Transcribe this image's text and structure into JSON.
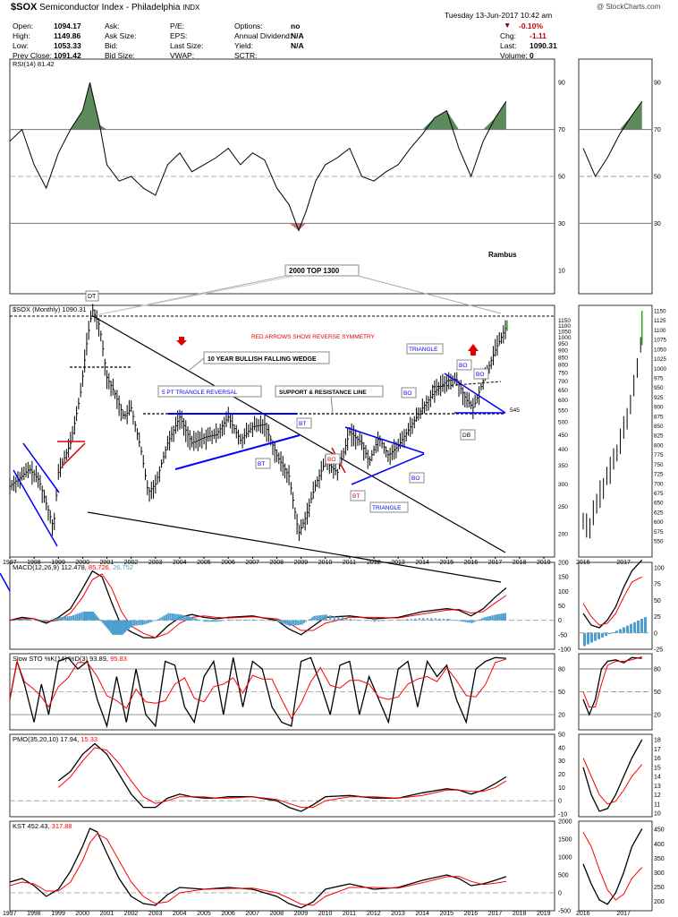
{
  "header": {
    "symbol": "$SOX",
    "name": "Semiconductor Index - Philadelphia",
    "exchange": "INDX",
    "date": "Tuesday  13-Jun-2017  10:42 am",
    "copyright": "@ StockCharts.com",
    "col1": [
      [
        "Open:",
        "1094.17"
      ],
      [
        "High:",
        "1149.86"
      ],
      [
        "Low:",
        "1053.33"
      ],
      [
        "Prev Close:",
        "1091.42"
      ]
    ],
    "col2": [
      "Ask:",
      "Ask Size:",
      "Bid:",
      "Bid Size:"
    ],
    "col3": [
      "P/E:",
      "EPS:",
      "Last Size:",
      "VWAP:"
    ],
    "col4": [
      [
        "Options:",
        "no"
      ],
      [
        "Annual Dividend:",
        "N/A"
      ],
      [
        "Yield:",
        "N/A"
      ],
      [
        "SCTR:",
        ""
      ]
    ],
    "col5": [
      [
        "",
        "-0.10%"
      ],
      [
        "Chg:",
        "-1.11"
      ],
      [
        "Last:",
        "1090.31"
      ],
      [
        "Volume:",
        "0"
      ]
    ]
  },
  "colors": {
    "price": "#000000",
    "signal": "#ff0000",
    "annot_blue": "#0000ff",
    "rsi_fill": "#5c8a5c",
    "macd_hist": "#4a9fd0",
    "grid": "#888888",
    "up_bar": "#22aa22"
  },
  "chart_data": [
    {
      "type": "line",
      "panel": "RSI",
      "legend": "RSI(14) 81.42",
      "ylim": [
        0,
        100
      ],
      "yticks": [
        10,
        30,
        50,
        70,
        90
      ],
      "x": [
        1997.0,
        1997.5,
        1998.0,
        1998.5,
        1999.0,
        1999.5,
        2000.0,
        2000.3,
        2000.7,
        2001.0,
        2001.5,
        2002.0,
        2002.5,
        2003.0,
        2003.5,
        2004.0,
        2004.5,
        2005.0,
        2005.5,
        2006.0,
        2006.5,
        2007.0,
        2007.5,
        2008.0,
        2008.5,
        2008.9,
        2009.2,
        2009.6,
        2010.0,
        2010.5,
        2011.0,
        2011.5,
        2012.0,
        2012.5,
        2013.0,
        2013.5,
        2014.0,
        2014.5,
        2015.0,
        2015.5,
        2016.0,
        2016.5,
        2017.0,
        2017.45
      ],
      "values": [
        65,
        70,
        55,
        45,
        60,
        70,
        78,
        90,
        72,
        55,
        48,
        50,
        45,
        42,
        55,
        60,
        52,
        55,
        58,
        62,
        55,
        60,
        57,
        45,
        38,
        27,
        35,
        48,
        55,
        58,
        62,
        50,
        48,
        52,
        55,
        62,
        68,
        75,
        78,
        62,
        50,
        65,
        75,
        82
      ],
      "rsi_inset": {
        "x": [
          2016.0,
          2016.3,
          2016.6,
          2016.9,
          2017.2,
          2017.45
        ],
        "values": [
          62,
          50,
          58,
          68,
          76,
          82
        ],
        "ylim": [
          0,
          100
        ],
        "yticks": [
          30,
          50,
          70,
          90
        ]
      }
    },
    {
      "type": "bar",
      "panel": "Price",
      "legend": "$SOX (Monthly) 1090.31",
      "scale": "log",
      "ylim": [
        165,
        1300
      ],
      "yticks": [
        200,
        250,
        300,
        350,
        400,
        450,
        500,
        550,
        600,
        650,
        700,
        750,
        800,
        850,
        900,
        950,
        1000,
        1050,
        1100,
        1150,
        1200,
        1250,
        1300
      ],
      "xticks": [
        "1997",
        "1998",
        "1999",
        "2000",
        "2001",
        "2002",
        "2003",
        "2004",
        "2005",
        "2006",
        "2007",
        "2008",
        "2009",
        "2010",
        "2011",
        "2012",
        "2013",
        "2014",
        "2015",
        "2016",
        "2017",
        "2018",
        "2019"
      ],
      "close_path": [
        [
          1997.0,
          295
        ],
        [
          1997.5,
          320
        ],
        [
          1997.8,
          340
        ],
        [
          1998.2,
          310
        ],
        [
          1998.6,
          240
        ],
        [
          1998.8,
          210
        ],
        [
          1999.0,
          330
        ],
        [
          1999.5,
          420
        ],
        [
          1999.9,
          620
        ],
        [
          2000.2,
          1000
        ],
        [
          2000.4,
          1260
        ],
        [
          2000.7,
          1100
        ],
        [
          2001.0,
          720
        ],
        [
          2001.3,
          640
        ],
        [
          2001.7,
          520
        ],
        [
          2002.0,
          560
        ],
        [
          2002.4,
          400
        ],
        [
          2002.7,
          280
        ],
        [
          2003.0,
          300
        ],
        [
          2003.5,
          420
        ],
        [
          2004.0,
          520
        ],
        [
          2004.5,
          420
        ],
        [
          2005.0,
          440
        ],
        [
          2005.5,
          450
        ],
        [
          2006.0,
          520
        ],
        [
          2006.5,
          430
        ],
        [
          2007.0,
          480
        ],
        [
          2007.5,
          490
        ],
        [
          2008.0,
          380
        ],
        [
          2008.5,
          320
        ],
        [
          2008.9,
          200
        ],
        [
          2009.2,
          230
        ],
        [
          2009.6,
          300
        ],
        [
          2010.0,
          360
        ],
        [
          2010.5,
          330
        ],
        [
          2011.0,
          460
        ],
        [
          2011.5,
          420
        ],
        [
          2011.8,
          360
        ],
        [
          2012.2,
          440
        ],
        [
          2012.6,
          380
        ],
        [
          2013.0,
          410
        ],
        [
          2013.5,
          480
        ],
        [
          2014.0,
          560
        ],
        [
          2014.5,
          640
        ],
        [
          2015.0,
          700
        ],
        [
          2015.4,
          710
        ],
        [
          2015.8,
          600
        ],
        [
          2016.1,
          560
        ],
        [
          2016.5,
          700
        ],
        [
          2017.0,
          900
        ],
        [
          2017.45,
          1090
        ]
      ],
      "price_inset": {
        "ylim": [
          550,
          1150
        ],
        "yticks": [
          550,
          575,
          600,
          625,
          650,
          675,
          700,
          725,
          750,
          775,
          800,
          825,
          850,
          875,
          900,
          925,
          950,
          975,
          1000,
          1025,
          1050,
          1075,
          1100,
          1125,
          1150
        ],
        "xticks": [
          "2016",
          "2017"
        ],
        "x": [
          2016.0,
          2016.15,
          2016.3,
          2016.5,
          2016.7,
          2016.9,
          2017.1,
          2017.3,
          2017.45
        ],
        "values": [
          600,
          570,
          640,
          690,
          740,
          800,
          880,
          980,
          1090
        ]
      },
      "annotations": [
        "2000 TOP 1300",
        "DT",
        "Rambus",
        "RED ARROWS SHOW REVERSE SYMMETRY",
        "10 YEAR BULLISH FALLING WEDGE",
        "5 PT TRIANGLE REVERSAL",
        "SUPPORT & RESISTANCE LINE",
        "TRIANGLE",
        "BO",
        "BO",
        "BO",
        "BT",
        "BT",
        "BT",
        "TRIANGLE",
        "BO",
        "BO",
        "DB",
        "545"
      ]
    },
    {
      "type": "line",
      "panel": "MACD",
      "legend": [
        "MACD(12,26,9) 112.478, ",
        "85.726, ",
        "26.752"
      ],
      "ylim": [
        -100,
        200
      ],
      "yticks": [
        -100,
        -50,
        0,
        50,
        100,
        150,
        200
      ],
      "macd_x": [
        1997.0,
        1997.5,
        1998.0,
        1998.5,
        1999.0,
        1999.5,
        2000.0,
        2000.4,
        2000.8,
        2001.2,
        2001.6,
        2002.0,
        2002.5,
        2003.0,
        2003.5,
        2004.0,
        2004.5,
        2005.0,
        2005.5,
        2006.0,
        2007.0,
        2008.0,
        2008.5,
        2009.0,
        2009.5,
        2010.0,
        2011.0,
        2012.0,
        2013.0,
        2014.0,
        2015.0,
        2015.5,
        2016.0,
        2016.5,
        2017.0,
        2017.45
      ],
      "macd_values": [
        0,
        10,
        5,
        -10,
        10,
        40,
        110,
        170,
        150,
        60,
        -20,
        -40,
        -60,
        -60,
        -20,
        10,
        20,
        10,
        5,
        10,
        15,
        0,
        -30,
        -50,
        -20,
        10,
        15,
        5,
        10,
        30,
        40,
        35,
        15,
        40,
        80,
        112
      ],
      "signal_values": [
        0,
        5,
        5,
        -5,
        0,
        25,
        80,
        140,
        160,
        110,
        30,
        -20,
        -45,
        -60,
        -45,
        -10,
        10,
        15,
        10,
        8,
        12,
        5,
        -10,
        -35,
        -35,
        -10,
        10,
        10,
        8,
        22,
        35,
        38,
        25,
        30,
        60,
        86
      ],
      "macd_inset": {
        "ylim": [
          -25,
          100
        ],
        "yticks": [
          -25,
          0,
          25,
          50,
          75,
          100
        ]
      }
    },
    {
      "type": "line",
      "panel": "SlowSto",
      "legend": [
        "Slow STO %K(14) %D(3) 93.89, ",
        "95.83"
      ],
      "ylim": [
        0,
        100
      ],
      "yticks": [
        20,
        50,
        80
      ],
      "k_x": [
        1997.0,
        1997.3,
        1997.6,
        1998.0,
        1998.3,
        1998.6,
        1999.0,
        1999.4,
        1999.8,
        2000.2,
        2000.6,
        2001.0,
        2001.4,
        2001.8,
        2002.2,
        2002.6,
        2003.0,
        2003.4,
        2003.8,
        2004.2,
        2004.6,
        2005.0,
        2005.4,
        2005.8,
        2006.2,
        2006.6,
        2007.0,
        2007.4,
        2007.8,
        2008.2,
        2008.6,
        2009.0,
        2009.4,
        2009.8,
        2010.2,
        2010.6,
        2011.0,
        2011.4,
        2011.8,
        2012.2,
        2012.6,
        2013.0,
        2013.4,
        2013.8,
        2014.2,
        2014.6,
        2015.0,
        2015.4,
        2015.8,
        2016.2,
        2016.6,
        2017.0,
        2017.45
      ],
      "k_values": [
        40,
        90,
        60,
        10,
        60,
        20,
        90,
        95,
        80,
        90,
        40,
        5,
        70,
        10,
        80,
        20,
        5,
        90,
        85,
        30,
        10,
        70,
        90,
        20,
        95,
        30,
        90,
        80,
        30,
        10,
        5,
        90,
        95,
        60,
        20,
        85,
        90,
        20,
        70,
        40,
        10,
        80,
        90,
        30,
        90,
        70,
        85,
        40,
        10,
        80,
        90,
        95,
        94
      ],
      "sto_inset": {
        "ylim": [
          0,
          100
        ],
        "yticks": [
          20,
          50,
          80
        ]
      }
    },
    {
      "type": "line",
      "panel": "PMO",
      "legend": [
        "PMO(35,20,10) 17.94, ",
        "15.33"
      ],
      "ylim": [
        -12,
        50
      ],
      "yticks": [
        -10,
        0,
        10,
        20,
        30,
        40,
        50
      ],
      "pmo_x": [
        1999.0,
        1999.5,
        2000.0,
        2000.5,
        2001.0,
        2001.5,
        2002.0,
        2002.5,
        2003.0,
        2003.5,
        2004.0,
        2004.5,
        2005.0,
        2005.5,
        2006.0,
        2007.0,
        2008.0,
        2008.5,
        2009.0,
        2009.5,
        2010.0,
        2011.0,
        2012.0,
        2013.0,
        2014.0,
        2015.0,
        2015.5,
        2016.0,
        2016.5,
        2017.0,
        2017.45
      ],
      "pmo_values": [
        15,
        22,
        35,
        43,
        35,
        20,
        5,
        -5,
        -5,
        2,
        5,
        3,
        2,
        2,
        3,
        3,
        0,
        -5,
        -8,
        -3,
        3,
        4,
        2,
        2,
        6,
        9,
        8,
        5,
        8,
        13,
        18
      ],
      "pmo_signal": [
        10,
        18,
        30,
        40,
        38,
        28,
        15,
        3,
        -2,
        0,
        3,
        3,
        3,
        2,
        2,
        3,
        1,
        -2,
        -5,
        -5,
        0,
        3,
        3,
        2,
        4,
        8,
        8,
        7,
        7,
        10,
        15
      ],
      "pmo_inset": {
        "ylim": [
          10,
          18
        ],
        "yticks": [
          10,
          11,
          12,
          13,
          14,
          15,
          16,
          17,
          18
        ]
      }
    },
    {
      "type": "line",
      "panel": "KST",
      "legend": [
        "KST 452.43, ",
        "317.88"
      ],
      "ylim": [
        -500,
        2000
      ],
      "yticks": [
        -500,
        0,
        500,
        1000,
        1500,
        2000
      ],
      "kst_x": [
        1997.0,
        1997.5,
        1998.0,
        1998.5,
        1999.0,
        1999.5,
        2000.0,
        2000.3,
        2000.6,
        2001.0,
        2001.5,
        2002.0,
        2002.5,
        2003.0,
        2003.5,
        2004.0,
        2005.0,
        2006.0,
        2007.0,
        2008.0,
        2008.5,
        2009.0,
        2009.5,
        2010.0,
        2011.0,
        2012.0,
        2013.0,
        2014.0,
        2015.0,
        2015.5,
        2016.0,
        2016.5,
        2017.0,
        2017.45
      ],
      "kst_values": [
        300,
        400,
        200,
        -100,
        100,
        600,
        1300,
        1800,
        1700,
        1100,
        400,
        -100,
        -300,
        -350,
        -50,
        150,
        100,
        150,
        100,
        -100,
        -300,
        -420,
        -250,
        100,
        250,
        100,
        150,
        350,
        500,
        400,
        200,
        250,
        350,
        452
      ],
      "kst_signal": [
        200,
        300,
        250,
        50,
        50,
        300,
        900,
        1400,
        1650,
        1500,
        900,
        300,
        -100,
        -300,
        -250,
        0,
        100,
        120,
        130,
        0,
        -150,
        -320,
        -350,
        -100,
        150,
        150,
        130,
        280,
        450,
        460,
        320,
        230,
        270,
        318
      ],
      "kst_inset": {
        "ylim": [
          180,
          460
        ],
        "yticks": [
          200,
          250,
          300,
          350,
          400,
          450
        ]
      }
    }
  ],
  "labels": {
    "price_axis_extra": "1090.31"
  }
}
